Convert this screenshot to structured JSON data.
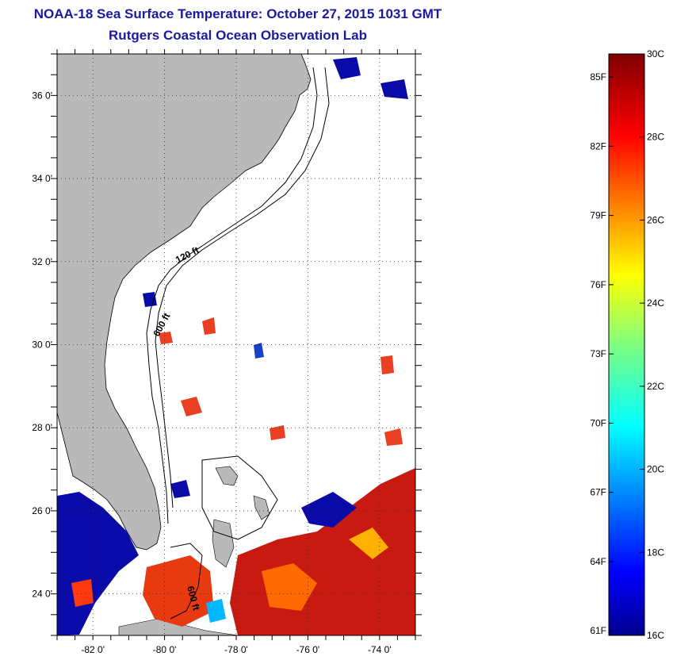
{
  "title": "NOAA-18 Sea Surface Temperature:  October 27, 2015 1031 GMT",
  "subtitle": "Rutgers Coastal Ocean Observation Lab",
  "map": {
    "lon_range": [
      -83,
      -73
    ],
    "lat_range": [
      23,
      37
    ],
    "lat_ticks": [
      {
        "value": 36,
        "label": "36 0'"
      },
      {
        "value": 34,
        "label": "34 0'"
      },
      {
        "value": 32,
        "label": "32 0'"
      },
      {
        "value": 30,
        "label": "30 0'"
      },
      {
        "value": 28,
        "label": "28 0'"
      },
      {
        "value": 26,
        "label": "26 0'"
      },
      {
        "value": 24,
        "label": "24 0'"
      }
    ],
    "lon_ticks": [
      {
        "value": -82,
        "label": "-82 0'"
      },
      {
        "value": -80,
        "label": "-80 0'"
      },
      {
        "value": -78,
        "label": "-78 0'"
      },
      {
        "value": -76,
        "label": "-76 0'"
      },
      {
        "value": -74,
        "label": "-74 0'"
      }
    ],
    "contour_labels": [
      "120 ft",
      "600 ft",
      "600 ft"
    ],
    "colors": {
      "land": "#b9b9b9",
      "ocean_nodata": "#ffffff",
      "grid": "#333333"
    }
  },
  "colorbar": {
    "min_c": 16,
    "max_c": 30,
    "celsius_labels": [
      "30C",
      "28C",
      "26C",
      "24C",
      "22C",
      "20C",
      "18C",
      "16C"
    ],
    "fahrenheit_labels": [
      "85F",
      "82F",
      "79F",
      "76F",
      "73F",
      "70F",
      "67F",
      "64F",
      "61F"
    ],
    "colormap": "jet"
  }
}
